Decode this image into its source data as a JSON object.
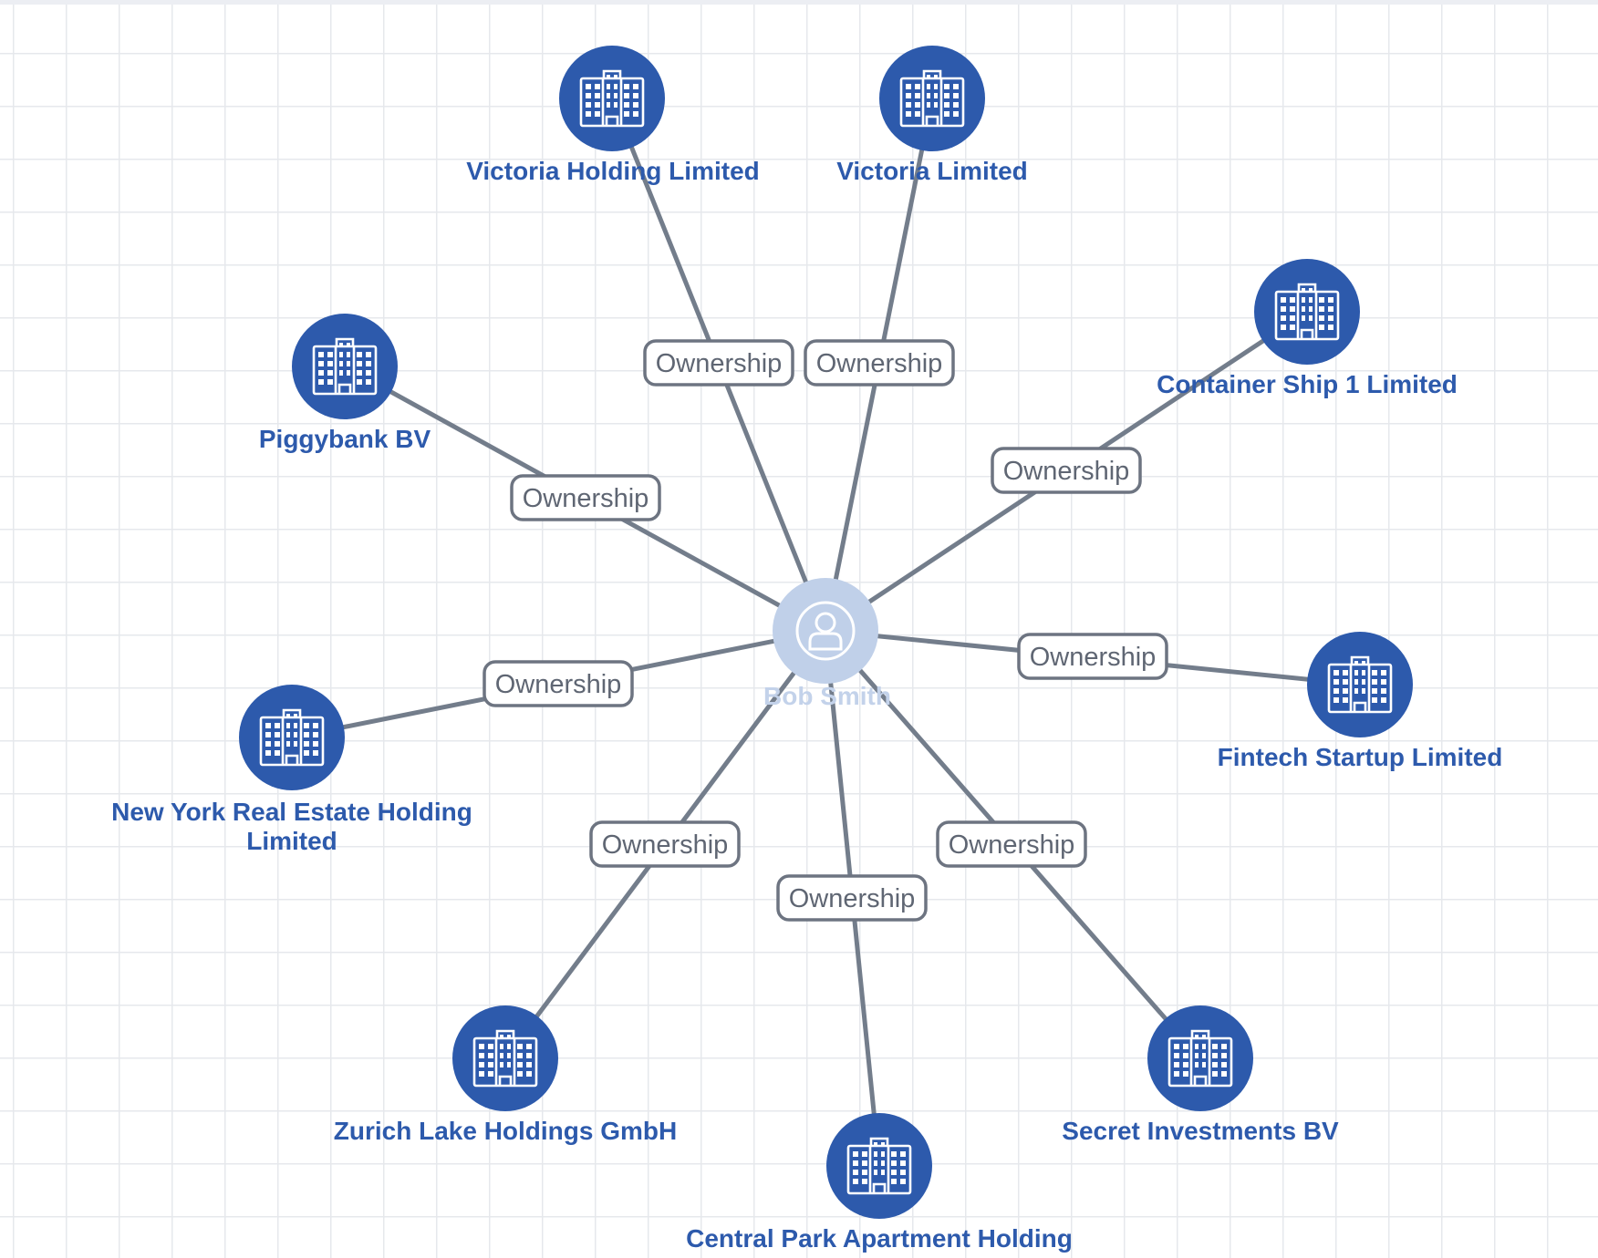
{
  "colors": {
    "company_node": "#2d5aac",
    "company_label": "#2d5aac",
    "person_node": "#c0d0e9",
    "person_label": "#c3d2ea",
    "edge": "#737d8b",
    "edge_label_border": "#6d7481",
    "edge_label_text": "#5f6673",
    "grid": "#e6e8ec",
    "background": "#ffffff"
  },
  "center": {
    "label": "Bob Smith",
    "icon": "person-icon"
  },
  "company_icon": "office-building-icon",
  "relationship_label": "Ownership",
  "companies": [
    {
      "id": "victoria-holding-limited",
      "lines": [
        "Victoria Holding Limited"
      ]
    },
    {
      "id": "victoria-limited",
      "lines": [
        "Victoria Limited"
      ]
    },
    {
      "id": "container-ship-1-limited",
      "lines": [
        "Container Ship 1 Limited"
      ]
    },
    {
      "id": "piggybank-bv",
      "lines": [
        "Piggybank BV"
      ]
    },
    {
      "id": "fintech-startup-limited",
      "lines": [
        "Fintech Startup Limited"
      ]
    },
    {
      "id": "new-york-real-estate-holding-limited",
      "lines": [
        "New York Real Estate Holding",
        "Limited"
      ]
    },
    {
      "id": "zurich-lake-holdings-gmbh",
      "lines": [
        "Zurich Lake Holdings GmbH"
      ]
    },
    {
      "id": "central-park-apartment-holding",
      "lines": [
        "Central Park Apartment Holding"
      ]
    },
    {
      "id": "secret-investments-bv",
      "lines": [
        "Secret Investments BV"
      ]
    }
  ],
  "edges": [
    {
      "from": "bob-smith",
      "to": "victoria-holding-limited",
      "label": "Ownership"
    },
    {
      "from": "bob-smith",
      "to": "victoria-limited",
      "label": "Ownership"
    },
    {
      "from": "bob-smith",
      "to": "container-ship-1-limited",
      "label": "Ownership"
    },
    {
      "from": "bob-smith",
      "to": "piggybank-bv",
      "label": "Ownership"
    },
    {
      "from": "bob-smith",
      "to": "fintech-startup-limited",
      "label": "Ownership"
    },
    {
      "from": "bob-smith",
      "to": "new-york-real-estate-holding-limited",
      "label": "Ownership"
    },
    {
      "from": "bob-smith",
      "to": "zurich-lake-holdings-gmbh",
      "label": "Ownership"
    },
    {
      "from": "bob-smith",
      "to": "central-park-apartment-holding",
      "label": "Ownership"
    },
    {
      "from": "bob-smith",
      "to": "secret-investments-bv",
      "label": "Ownership"
    }
  ]
}
